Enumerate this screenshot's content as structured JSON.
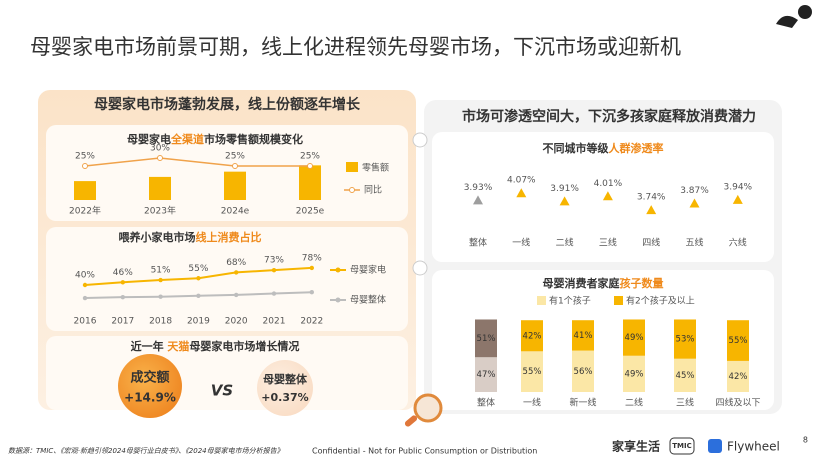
{
  "title": "母婴家电市场前景可期，线上化进程领先母婴市场，下沉市场或迎新机",
  "left_panel_title": "母婴家电市场蓬勃发展，线上份额逐年增长",
  "right_panel_title": "市场可渗透空间大，下沉多孩家庭释放消费潜力",
  "chart_data": [
    {
      "type": "bar_line",
      "title": [
        "母婴家电",
        "全渠道",
        "市场零售额规模变化"
      ],
      "categories": [
        "2022年",
        "2023年",
        "2024e",
        "2025e"
      ],
      "series": [
        {
          "name": "零售额",
          "color": "#f7b500",
          "values": [
            18,
            22,
            27,
            33
          ]
        },
        {
          "name": "同比",
          "color": "#f0a24a",
          "axis": "y2",
          "values": [
            25,
            30,
            25,
            25
          ],
          "value_labels": [
            "25%",
            "30%",
            "25%",
            "25%"
          ]
        }
      ]
    },
    {
      "type": "line",
      "title": [
        "喂养小家电市场",
        "线上消费占比"
      ],
      "x": [
        2016,
        2017,
        2018,
        2019,
        2020,
        2021,
        2022
      ],
      "series": [
        {
          "name": "母婴家电",
          "color": "#f7b500",
          "values": [
            40,
            46,
            51,
            55,
            68,
            73,
            78
          ],
          "value_labels": [
            "40%",
            "46%",
            "51%",
            "55%",
            "68%",
            "73%",
            "78%"
          ]
        },
        {
          "name": "母婴整体",
          "color": "#bdbdbd",
          "values": [
            11,
            13,
            14,
            16,
            18,
            21,
            24
          ]
        }
      ]
    },
    {
      "type": "scatter",
      "title": [
        "不同城市等级",
        "人群渗透率"
      ],
      "categories": [
        "整体",
        "一线",
        "二线",
        "三线",
        "四线",
        "五线",
        "六线"
      ],
      "values": [
        3.93,
        4.07,
        3.91,
        4.01,
        3.74,
        3.87,
        3.94
      ],
      "value_labels": [
        "3.93%",
        "4.07%",
        "3.91%",
        "4.01%",
        "3.74%",
        "3.87%",
        "3.94%"
      ],
      "colors": [
        "#9e9e9e",
        "#f7b500",
        "#f7b500",
        "#f7b500",
        "#f7b500",
        "#f7b500",
        "#f7b500"
      ]
    },
    {
      "type": "stacked_bar",
      "title": [
        "母婴消费者家庭",
        "孩子数量"
      ],
      "categories": [
        "整体",
        "一线",
        "新一线",
        "二线",
        "三线",
        "四线及以下"
      ],
      "ylim": [
        0,
        100
      ],
      "series": [
        {
          "name": "有1个孩子",
          "color": "#fbe7a6",
          "colors": [
            "#d9cdc6",
            "#fbe7a6",
            "#fbe7a6",
            "#fbe7a6",
            "#fbe7a6",
            "#fbe7a6"
          ],
          "values": [
            47,
            55,
            56,
            49,
            45,
            42
          ],
          "value_labels": [
            "47%",
            "55%",
            "56%",
            "49%",
            "45%",
            "42%"
          ]
        },
        {
          "name": "有2个孩子及以上",
          "color": "#f7b500",
          "colors": [
            "#8c766b",
            "#f7b500",
            "#f7b500",
            "#f7b500",
            "#f7b500",
            "#f7b500"
          ],
          "values": [
            51,
            42,
            41,
            49,
            53,
            55
          ],
          "value_labels": [
            "51%",
            "42%",
            "41%",
            "49%",
            "53%",
            "55%"
          ]
        }
      ]
    }
  ],
  "growth_compare": {
    "title": [
      "近一年 ",
      "天猫",
      "母婴家电市场增长情况"
    ],
    "items": [
      {
        "label": "成交额",
        "value": "+14.9%"
      },
      {
        "label": "母婴整体",
        "value": "+0.37%"
      }
    ],
    "vs": "VS"
  },
  "footer": {
    "source": "数据源：TMIC、《宏观·新趋引领2024母婴行业白皮书》、《2024母婴家电市场分析报告》",
    "confidential": "Confidential - Not for Public Consumption or Distribution",
    "page": "8",
    "logos": [
      "家享生活",
      "TMIC",
      "Flywheel"
    ]
  }
}
